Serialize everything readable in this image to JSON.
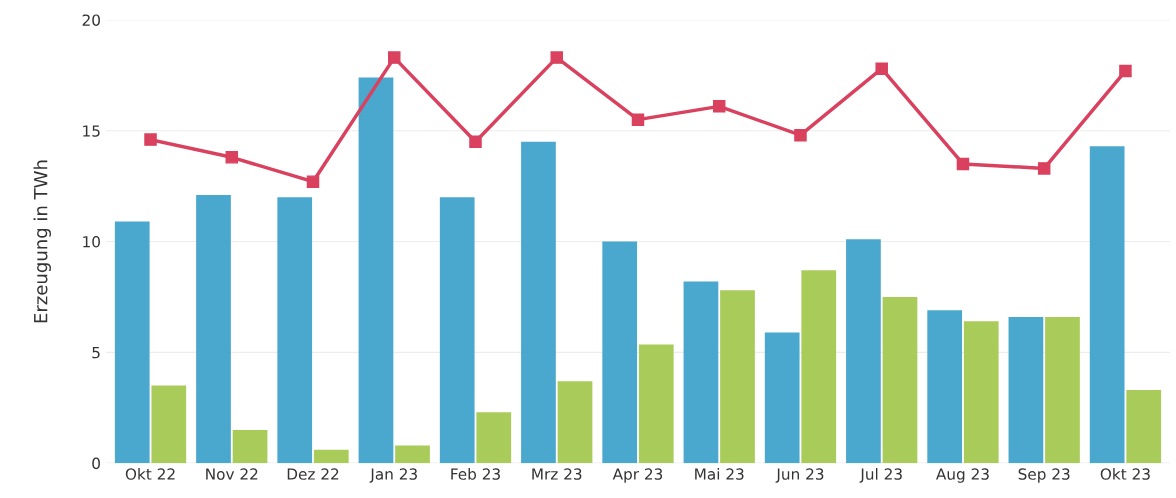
{
  "chart_data": {
    "type": "bar",
    "ylabel": "Erzeugung in TWh",
    "categories": [
      "Okt 22",
      "Nov 22",
      "Dez 22",
      "Jan 23",
      "Feb 23",
      "Mrz 23",
      "Apr 23",
      "Mai 23",
      "Jun 23",
      "Jul 23",
      "Aug 23",
      "Sep 23",
      "Okt 23"
    ],
    "series": [
      {
        "color": "#4aa8cf",
        "values": [
          10.9,
          12.1,
          12.0,
          17.4,
          12.0,
          14.5,
          10.0,
          8.2,
          5.9,
          10.1,
          6.9,
          6.6,
          14.3
        ]
      },
      {
        "color": "#a9cb5a",
        "values": [
          3.5,
          1.5,
          0.6,
          0.8,
          2.3,
          3.7,
          5.35,
          7.8,
          8.7,
          7.5,
          6.4,
          6.6,
          3.3
        ]
      },
      {
        "type": "line",
        "color": "#d9415e",
        "values": [
          14.6,
          13.8,
          12.7,
          18.3,
          14.5,
          18.3,
          15.5,
          16.1,
          14.8,
          17.8,
          13.5,
          13.3,
          17.7
        ]
      }
    ],
    "ylim": [
      0,
      20
    ],
    "yticks": [
      0,
      5,
      10,
      15,
      20
    ],
    "grid": "y",
    "marker": "square",
    "line_style": "solid"
  }
}
